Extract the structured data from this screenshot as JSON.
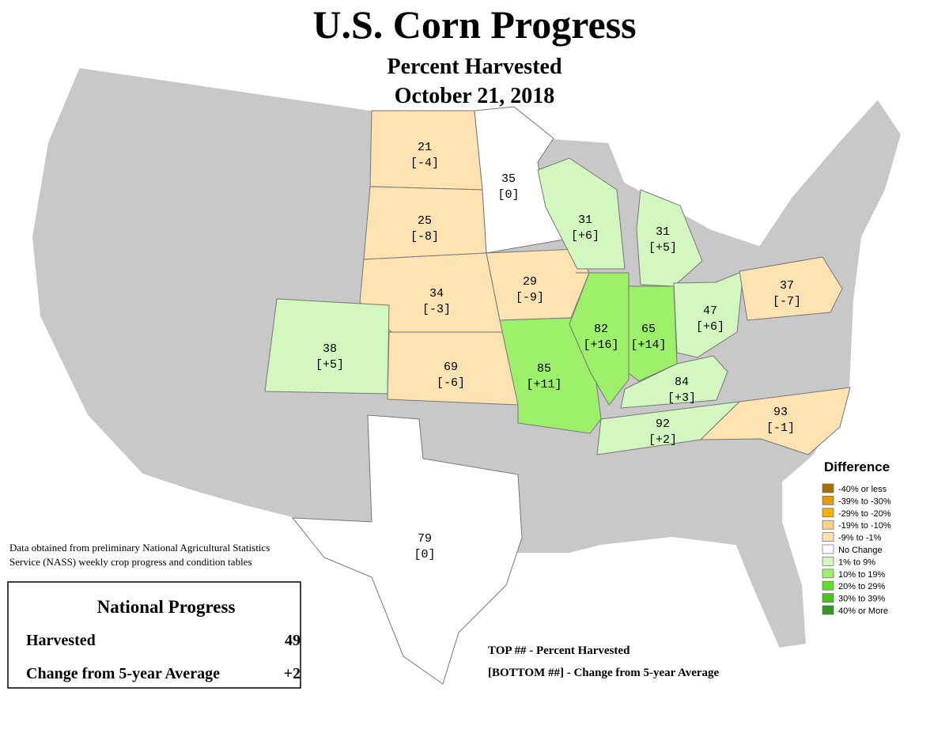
{
  "header": {
    "title": "U.S. Corn Progress",
    "subtitle": "Percent Harvested",
    "date": "October 21, 2018"
  },
  "states": [
    {
      "top": "21",
      "bottom": "[-4]",
      "color": "#fde3b1"
    },
    {
      "top": "25",
      "bottom": "[-8]",
      "color": "#fde3b1"
    },
    {
      "top": "35",
      "bottom": "[0]",
      "color": "#ffffff"
    },
    {
      "top": "34",
      "bottom": "[-3]",
      "color": "#fde3b1"
    },
    {
      "top": "29",
      "bottom": "[-9]",
      "color": "#fde3b1"
    },
    {
      "top": "38",
      "bottom": "[+5]",
      "color": "#d2f8c0"
    },
    {
      "top": "69",
      "bottom": "[-6]",
      "color": "#fde3b1"
    },
    {
      "top": "85",
      "bottom": "[+11]",
      "color": "#9cf06a"
    },
    {
      "top": "82",
      "bottom": "[+16]",
      "color": "#9cf06a"
    },
    {
      "top": "31",
      "bottom": "[+6]",
      "color": "#d2f8c0"
    },
    {
      "top": "31",
      "bottom": "[+5]",
      "color": "#d2f8c0"
    },
    {
      "top": "65",
      "bottom": "[+14]",
      "color": "#9cf06a"
    },
    {
      "top": "47",
      "bottom": "[+6]",
      "color": "#d2f8c0"
    },
    {
      "top": "84",
      "bottom": "[+3]",
      "color": "#d2f8c0"
    },
    {
      "top": "92",
      "bottom": "[+2]",
      "color": "#d2f8c0"
    },
    {
      "top": "93",
      "bottom": "[-1]",
      "color": "#fde3b1"
    },
    {
      "top": "37",
      "bottom": "[-7]",
      "color": "#fde3b1"
    },
    {
      "top": "79",
      "bottom": "[0]",
      "color": "#ffffff"
    }
  ],
  "legend": {
    "title": "Difference",
    "items": [
      {
        "label": "-40% or less",
        "color": "#a87000"
      },
      {
        "label": "-39% to -30%",
        "color": "#e39a0c"
      },
      {
        "label": "-29% to -20%",
        "color": "#f7b000"
      },
      {
        "label": "-19% to -10%",
        "color": "#fbd08a"
      },
      {
        "label": "-9% to -1%",
        "color": "#fde3b1"
      },
      {
        "label": "No Change",
        "color": "#ffffff"
      },
      {
        "label": "1% to 9%",
        "color": "#d2f8c0"
      },
      {
        "label": "10% to 19%",
        "color": "#9cf06a"
      },
      {
        "label": "20% to 29%",
        "color": "#5ee02a"
      },
      {
        "label": "30% to 39%",
        "color": "#44c61c"
      },
      {
        "label": "40% or More",
        "color": "#339922"
      }
    ]
  },
  "source_note": [
    "Data obtained from preliminary National Agricultural Statistics",
    "Service (NASS) weekly crop progress and condition tables"
  ],
  "national": {
    "title": "National Progress",
    "rows": [
      {
        "label": "Harvested",
        "value": "49"
      },
      {
        "label": "Change from 5-year Average",
        "value": "+2"
      }
    ]
  },
  "key": [
    "TOP ## - Percent Harvested",
    "[BOTTOM ##] - Change from 5-year Average"
  ]
}
